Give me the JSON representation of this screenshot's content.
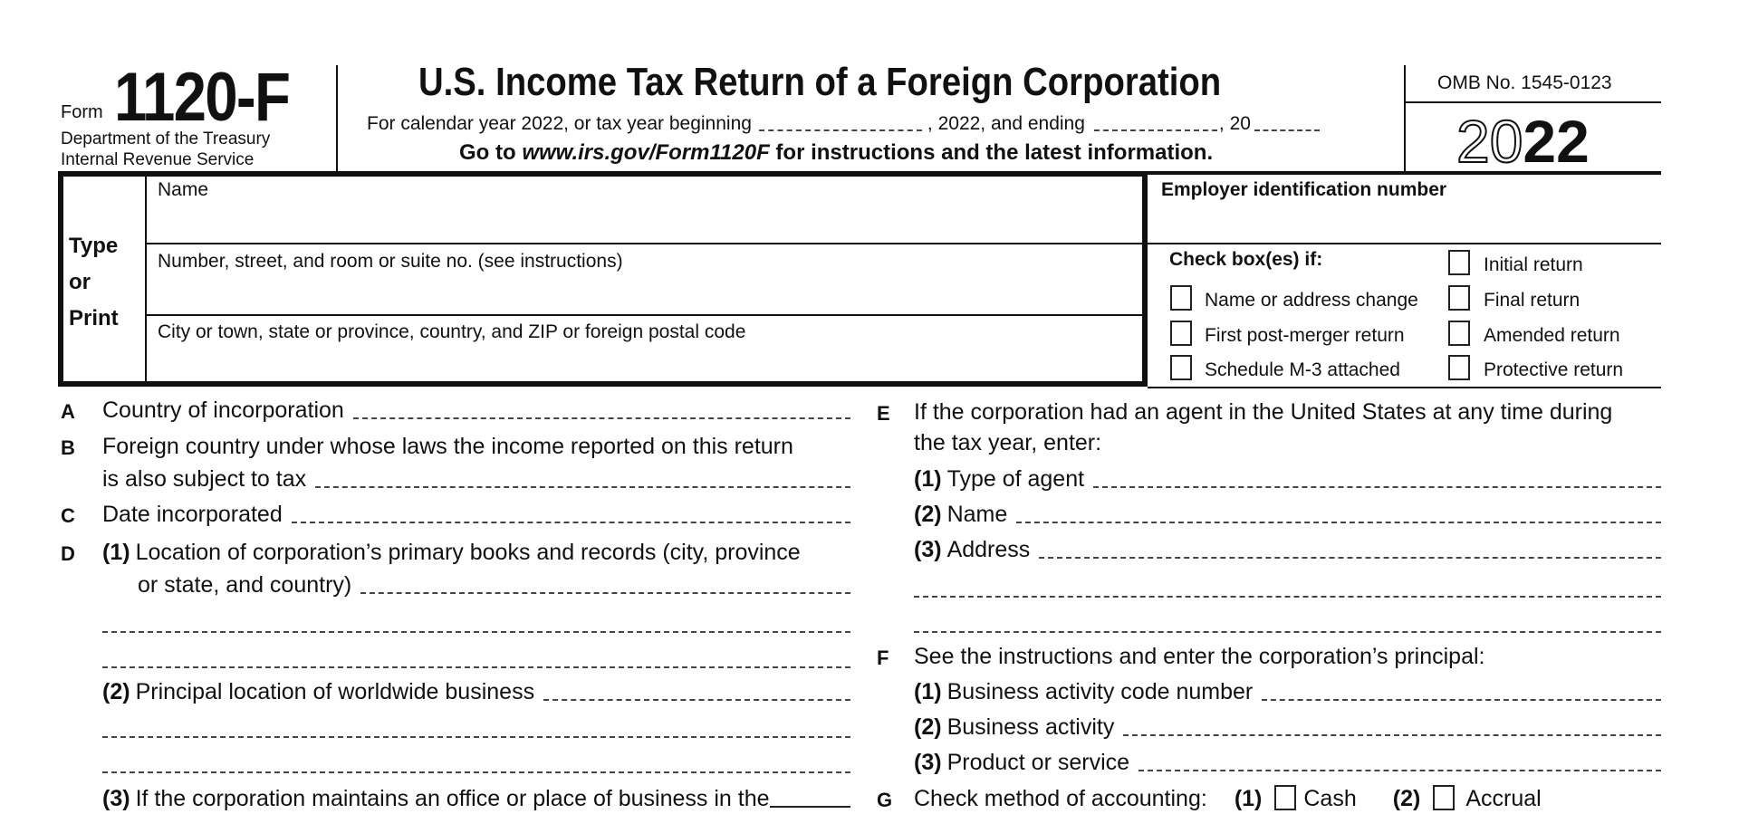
{
  "header": {
    "form_word": "Form",
    "form_number": "1120-F",
    "dept_line1": "Department of the Treasury",
    "dept_line2": "Internal Revenue Service",
    "title": "U.S. Income Tax Return of a Foreign Corporation",
    "subtitle_a": "For calendar year 2022, or tax year beginning",
    "subtitle_b": ", 2022, and ending",
    "subtitle_c": ", 20",
    "goto_a": "Go to ",
    "goto_url": "www.irs.gov/Form1120F",
    "goto_b": " for instructions and the latest information.",
    "omb": "OMB No. 1545-0123",
    "year_outline": "20",
    "year_bold": "22"
  },
  "entity": {
    "type_or_print": [
      "Type",
      "or",
      "Print"
    ],
    "name_label": "Name",
    "street_label": "Number, street, and room or suite no. (see instructions)",
    "city_label": "City or town, state or province, country, and ZIP or foreign postal code",
    "ein_label": "Employer identification number",
    "check_heading": "Check box(es) if:",
    "checkboxes": [
      {
        "label": "Initial return",
        "checked": false
      },
      {
        "label": "Name or address change",
        "checked": false
      },
      {
        "label": "Final return",
        "checked": false
      },
      {
        "label": "First post-merger return",
        "checked": false
      },
      {
        "label": "Amended return",
        "checked": false
      },
      {
        "label": "Schedule M-3 attached",
        "checked": false
      },
      {
        "label": "Protective return",
        "checked": false
      }
    ]
  },
  "left": {
    "A": {
      "letter": "A",
      "text": "Country of incorporation"
    },
    "B": {
      "letter": "B",
      "text1": "Foreign country under whose laws the income reported on this return",
      "text2": "is also subject to tax"
    },
    "C": {
      "letter": "C",
      "text": "Date incorporated"
    },
    "D": {
      "letter": "D",
      "n1": "(1)",
      "text1a": "Location of corporation’s primary books and records (city, province",
      "text1b": "or state, and country)",
      "n2": "(2)",
      "text2": "Principal location of worldwide business",
      "n3": "(3)",
      "text3": "If the corporation maintains an office or place of business in the"
    }
  },
  "right": {
    "E": {
      "letter": "E",
      "text1": "If the corporation had an agent in the United States at any time during",
      "text2": "the tax year, enter:",
      "n1": "(1)",
      "t1": "Type of agent",
      "n2": "(2)",
      "t2": "Name",
      "n3": "(3)",
      "t3": "Address"
    },
    "F": {
      "letter": "F",
      "text": "See the instructions and enter the corporation’s principal:",
      "n1": "(1)",
      "t1": "Business activity code number",
      "n2": "(2)",
      "t2": "Business activity",
      "n3": "(3)",
      "t3": "Product or service"
    },
    "G": {
      "letter": "G",
      "text": "Check method of accounting:",
      "n1": "(1)",
      "o1": "Cash",
      "n2": "(2)",
      "o2": "Accrual",
      "cash_checked": false,
      "accrual_checked": false
    }
  }
}
